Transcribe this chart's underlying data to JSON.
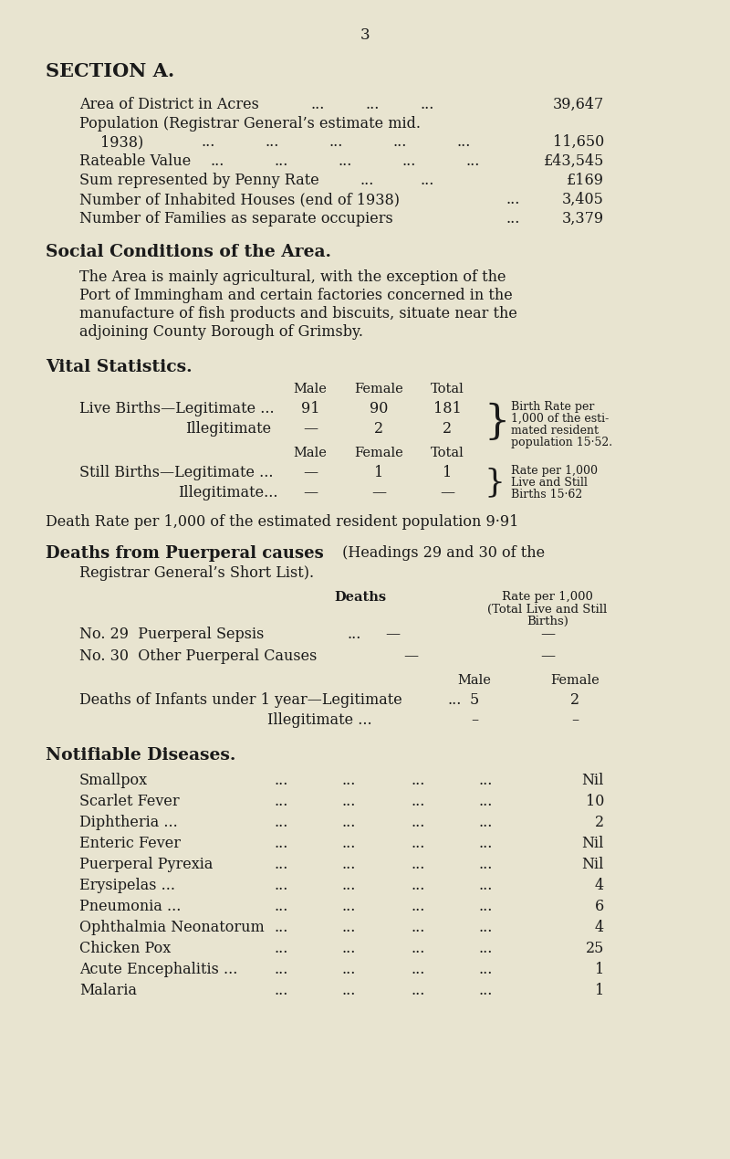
{
  "bg_color": "#e8e4d0",
  "text_color": "#1a1a1a",
  "page_number": "3",
  "section_title": "SECTION A.",
  "social_title": "Social Conditions of the Area.",
  "social_lines": [
    "The Area is mainly agricultural, with the exception of the",
    "Port of Immingham and certain factories concerned in the",
    "manufacture of fish products and biscuits, situate near the",
    "adjoining County Borough of Grimsby."
  ],
  "vital_title": "Vital Statistics.",
  "death_rate_line": "Death Rate per 1,000 of the estimated resident population 9·91",
  "puerperal_bold": "Deaths from Puerperal causes",
  "puerperal_rest": " (Headings 29 and 30 of the",
  "puerperal_line2": "    Registrar General’s Short List).",
  "notifiable_title": "Notifiable Diseases.",
  "notifiable_diseases": [
    [
      "Smallpox",
      "Nil"
    ],
    [
      "Scarlet Fever",
      "10"
    ],
    [
      "Diphtheria ...",
      "2"
    ],
    [
      "Enteric Fever",
      "Nil"
    ],
    [
      "Puerperal Pyrexia",
      "Nil"
    ],
    [
      "Erysipelas ...",
      "4"
    ],
    [
      "Pneumonia ...",
      "6"
    ],
    [
      "Ophthalmia Neonatorum",
      "4"
    ],
    [
      "Chicken Pox",
      "25"
    ],
    [
      "Acute Encephalitis ...",
      "1"
    ],
    [
      "Malaria",
      "1"
    ]
  ]
}
